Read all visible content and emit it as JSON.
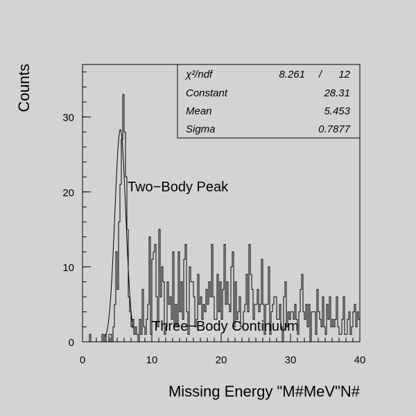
{
  "chart_data": {
    "type": "histogram",
    "xlabel": "Missing Energy \"M#MeV\"N#",
    "ylabel": "Counts",
    "xlim": [
      0,
      40
    ],
    "ylim": [
      0,
      37
    ],
    "x_ticks": [
      0,
      10,
      20,
      30,
      40
    ],
    "y_ticks": [
      0,
      10,
      20,
      30
    ],
    "bin_width": 0.2,
    "bin_start": 0,
    "counts": [
      0,
      0,
      0,
      0,
      0,
      1,
      0,
      0,
      0,
      0,
      0,
      0,
      0,
      0,
      1,
      0,
      1,
      0,
      0,
      1,
      1,
      0,
      2,
      5,
      12,
      7,
      16,
      21,
      27,
      33,
      28,
      22,
      15,
      6,
      4,
      2,
      3,
      1,
      2,
      1,
      0,
      3,
      1,
      7,
      2,
      1,
      3,
      5,
      14,
      1,
      11,
      12,
      13,
      6,
      2,
      15,
      6,
      10,
      8,
      1,
      2,
      8,
      5,
      6,
      3,
      12,
      2,
      5,
      2,
      12,
      4,
      8,
      3,
      11,
      13,
      4,
      1,
      10,
      8,
      8,
      6,
      2,
      3,
      9,
      5,
      6,
      3,
      5,
      4,
      7,
      5,
      8,
      6,
      13,
      6,
      3,
      3,
      9,
      4,
      8,
      3,
      7,
      13,
      5,
      8,
      5,
      4,
      10,
      12,
      2,
      8,
      3,
      4,
      6,
      2,
      2,
      4,
      5,
      9,
      4,
      13,
      9,
      7,
      3,
      5,
      5,
      7,
      4,
      5,
      11,
      5,
      1,
      5,
      5,
      10,
      1,
      4,
      5,
      6,
      6,
      3,
      3,
      5,
      2,
      0,
      6,
      8,
      2,
      4,
      3,
      4,
      4,
      3,
      5,
      3,
      1,
      4,
      7,
      9,
      4,
      3,
      5,
      2,
      5,
      0,
      4,
      4,
      4,
      1,
      7,
      4,
      3,
      2,
      6,
      2,
      1,
      5,
      3,
      6,
      2,
      3,
      2,
      3,
      6,
      2,
      1,
      1,
      3,
      6,
      1,
      1,
      3,
      4,
      1,
      2,
      4,
      5,
      2,
      4,
      3
    ],
    "fit": {
      "function": "gaussian",
      "constant": 28.31,
      "mean": 5.453,
      "sigma": 0.7877,
      "x_range": [
        3.3,
        7.3
      ]
    },
    "annotations": [
      "Two−Body Peak",
      "Three−Body Continuum"
    ],
    "stats": {
      "chi2_label": "χ²/ndf",
      "chi2_value": "8.261",
      "chi2_sep": "/",
      "ndf_value": "12",
      "constant_label": "Constant",
      "constant_value": "28.31",
      "mean_label": "Mean",
      "mean_value": "5.453",
      "sigma_label": "Sigma",
      "sigma_value": "0.7877"
    },
    "colors": {
      "background": "#d3d3d3",
      "line": "#000000"
    }
  }
}
